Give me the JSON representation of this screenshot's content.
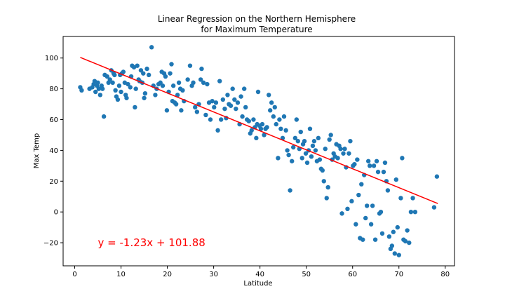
{
  "chart_data": {
    "type": "scatter",
    "title": [
      "Linear Regression on the Northern Hemisphere",
      "for Maximum Temperature"
    ],
    "xlabel": "Latitude",
    "ylabel": "Max Temp",
    "xlim": [
      -2.5,
      82
    ],
    "ylim": [
      -35,
      114
    ],
    "xticks": [
      0,
      10,
      20,
      30,
      40,
      50,
      60,
      70,
      80
    ],
    "yticks": [
      -20,
      0,
      20,
      40,
      60,
      80,
      100
    ],
    "yticklabels": [
      "−20",
      "0",
      "20",
      "40",
      "60",
      "80",
      "100"
    ],
    "grid": false,
    "point_color": "#1f77b4",
    "regression": {
      "slope": -1.23,
      "intercept": 101.88,
      "x_range": [
        1.2,
        78.4
      ],
      "color": "#ff0000"
    },
    "annotation": {
      "text": "y = -1.23x + 101.88",
      "x": 5,
      "y": -20,
      "color": "#ff0000"
    },
    "points": [
      [
        1.2,
        81
      ],
      [
        1.5,
        79
      ],
      [
        3.2,
        80
      ],
      [
        3.8,
        81
      ],
      [
        4.1,
        83
      ],
      [
        4.3,
        85
      ],
      [
        4.5,
        78
      ],
      [
        4.8,
        82
      ],
      [
        5.0,
        84
      ],
      [
        5.2,
        80
      ],
      [
        5.5,
        76
      ],
      [
        5.8,
        82
      ],
      [
        6.0,
        80
      ],
      [
        6.3,
        62
      ],
      [
        6.5,
        89
      ],
      [
        7.0,
        88
      ],
      [
        7.3,
        84
      ],
      [
        7.6,
        86
      ],
      [
        7.9,
        92
      ],
      [
        8.2,
        84
      ],
      [
        8.4,
        90
      ],
      [
        8.6,
        89
      ],
      [
        8.8,
        79
      ],
      [
        9.0,
        75
      ],
      [
        9.3,
        73
      ],
      [
        9.6,
        82
      ],
      [
        9.8,
        89
      ],
      [
        10.0,
        78
      ],
      [
        10.2,
        90
      ],
      [
        10.5,
        91
      ],
      [
        10.8,
        84
      ],
      [
        11.0,
        76
      ],
      [
        11.2,
        74
      ],
      [
        11.5,
        83
      ],
      [
        12.0,
        81
      ],
      [
        12.2,
        88
      ],
      [
        12.4,
        95
      ],
      [
        12.8,
        94
      ],
      [
        13.0,
        68
      ],
      [
        13.2,
        80
      ],
      [
        13.5,
        95
      ],
      [
        13.8,
        86
      ],
      [
        14.0,
        85
      ],
      [
        14.3,
        92
      ],
      [
        14.6,
        84
      ],
      [
        14.8,
        90
      ],
      [
        15.0,
        74
      ],
      [
        15.2,
        77
      ],
      [
        15.6,
        93
      ],
      [
        16.0,
        89
      ],
      [
        16.6,
        107
      ],
      [
        17.0,
        82
      ],
      [
        17.4,
        76
      ],
      [
        17.7,
        80
      ],
      [
        18.1,
        83
      ],
      [
        18.5,
        84
      ],
      [
        18.8,
        91
      ],
      [
        19.0,
        82
      ],
      [
        19.3,
        90
      ],
      [
        19.6,
        88
      ],
      [
        19.9,
        66
      ],
      [
        20.3,
        78
      ],
      [
        20.6,
        90
      ],
      [
        20.9,
        96
      ],
      [
        21.1,
        72
      ],
      [
        21.3,
        82
      ],
      [
        21.6,
        71
      ],
      [
        21.9,
        70
      ],
      [
        22.2,
        76
      ],
      [
        22.5,
        84
      ],
      [
        22.8,
        80
      ],
      [
        23.0,
        66
      ],
      [
        23.3,
        79
      ],
      [
        23.6,
        72
      ],
      [
        24.4,
        86
      ],
      [
        24.9,
        95
      ],
      [
        25.3,
        82
      ],
      [
        25.6,
        84
      ],
      [
        26.0,
        68
      ],
      [
        26.4,
        65
      ],
      [
        26.8,
        70
      ],
      [
        27.2,
        86
      ],
      [
        27.4,
        93
      ],
      [
        27.8,
        84
      ],
      [
        28.3,
        63
      ],
      [
        28.6,
        83
      ],
      [
        29.0,
        71
      ],
      [
        29.3,
        60
      ],
      [
        29.7,
        72
      ],
      [
        30.1,
        68
      ],
      [
        30.5,
        71
      ],
      [
        30.9,
        53
      ],
      [
        31.3,
        85
      ],
      [
        31.6,
        60
      ],
      [
        32.0,
        73
      ],
      [
        32.4,
        67
      ],
      [
        32.7,
        61
      ],
      [
        33.0,
        76
      ],
      [
        33.3,
        70
      ],
      [
        33.7,
        69
      ],
      [
        34.1,
        80
      ],
      [
        34.5,
        73
      ],
      [
        34.8,
        67
      ],
      [
        35.2,
        71
      ],
      [
        35.6,
        57
      ],
      [
        35.9,
        75
      ],
      [
        36.2,
        62
      ],
      [
        36.6,
        80
      ],
      [
        36.9,
        68
      ],
      [
        37.2,
        60
      ],
      [
        37.6,
        59
      ],
      [
        37.9,
        51
      ],
      [
        38.2,
        53
      ],
      [
        38.6,
        60
      ],
      [
        38.9,
        55
      ],
      [
        39.2,
        48
      ],
      [
        39.4,
        57
      ],
      [
        39.6,
        78
      ],
      [
        39.9,
        56
      ],
      [
        40.2,
        54
      ],
      [
        40.5,
        57
      ],
      [
        40.9,
        50
      ],
      [
        41.2,
        54
      ],
      [
        41.5,
        55
      ],
      [
        41.9,
        76
      ],
      [
        42.2,
        66
      ],
      [
        42.5,
        71
      ],
      [
        42.9,
        62
      ],
      [
        43.2,
        68
      ],
      [
        43.5,
        57
      ],
      [
        43.9,
        35
      ],
      [
        44.2,
        60
      ],
      [
        44.5,
        54
      ],
      [
        44.9,
        48
      ],
      [
        45.2,
        62
      ],
      [
        45.6,
        53
      ],
      [
        45.9,
        40
      ],
      [
        46.2,
        37
      ],
      [
        46.5,
        14
      ],
      [
        46.9,
        33
      ],
      [
        47.2,
        42
      ],
      [
        47.6,
        48
      ],
      [
        47.9,
        60
      ],
      [
        48.2,
        46
      ],
      [
        48.5,
        41
      ],
      [
        48.8,
        52
      ],
      [
        49.1,
        35
      ],
      [
        49.3,
        44
      ],
      [
        49.6,
        46
      ],
      [
        49.9,
        38
      ],
      [
        50.2,
        32
      ],
      [
        50.5,
        40
      ],
      [
        50.8,
        54
      ],
      [
        51.1,
        36
      ],
      [
        51.4,
        43
      ],
      [
        51.7,
        46
      ],
      [
        52.0,
        40
      ],
      [
        52.3,
        33
      ],
      [
        52.6,
        48
      ],
      [
        52.9,
        34
      ],
      [
        53.2,
        28
      ],
      [
        53.5,
        27
      ],
      [
        53.8,
        20
      ],
      [
        54.1,
        41
      ],
      [
        54.4,
        9
      ],
      [
        54.7,
        16
      ],
      [
        55.0,
        47
      ],
      [
        55.3,
        50
      ],
      [
        55.6,
        34
      ],
      [
        55.9,
        38
      ],
      [
        56.2,
        36
      ],
      [
        56.5,
        44
      ],
      [
        56.8,
        35
      ],
      [
        57.1,
        43
      ],
      [
        57.4,
        41
      ],
      [
        57.7,
        -1
      ],
      [
        58.0,
        38
      ],
      [
        58.3,
        41
      ],
      [
        58.6,
        29
      ],
      [
        58.9,
        2
      ],
      [
        59.2,
        38
      ],
      [
        59.5,
        46
      ],
      [
        59.8,
        7
      ],
      [
        60.1,
        30
      ],
      [
        60.4,
        31
      ],
      [
        60.7,
        -8
      ],
      [
        61.0,
        34
      ],
      [
        61.3,
        11
      ],
      [
        61.6,
        -17
      ],
      [
        61.9,
        18
      ],
      [
        62.2,
        -18
      ],
      [
        62.5,
        24
      ],
      [
        62.8,
        -4
      ],
      [
        63.1,
        4
      ],
      [
        63.4,
        33
      ],
      [
        63.7,
        30
      ],
      [
        64.0,
        -8
      ],
      [
        64.3,
        4
      ],
      [
        64.6,
        30
      ],
      [
        64.9,
        -18
      ],
      [
        65.2,
        33
      ],
      [
        65.5,
        26
      ],
      [
        65.8,
        -1
      ],
      [
        66.1,
        0
      ],
      [
        66.4,
        -14
      ],
      [
        66.7,
        26
      ],
      [
        67.0,
        32
      ],
      [
        67.3,
        20
      ],
      [
        67.6,
        14
      ],
      [
        67.9,
        -16
      ],
      [
        68.2,
        -24
      ],
      [
        68.5,
        -22
      ],
      [
        68.8,
        -13
      ],
      [
        69.1,
        -27
      ],
      [
        69.4,
        21
      ],
      [
        69.7,
        -10
      ],
      [
        70.0,
        -28
      ],
      [
        70.4,
        9
      ],
      [
        70.7,
        35
      ],
      [
        71.0,
        -18
      ],
      [
        71.4,
        -19
      ],
      [
        71.8,
        -12
      ],
      [
        72.2,
        -20
      ],
      [
        72.6,
        0
      ],
      [
        73.0,
        9
      ],
      [
        73.5,
        0
      ],
      [
        77.6,
        3
      ],
      [
        78.2,
        23
      ]
    ]
  }
}
